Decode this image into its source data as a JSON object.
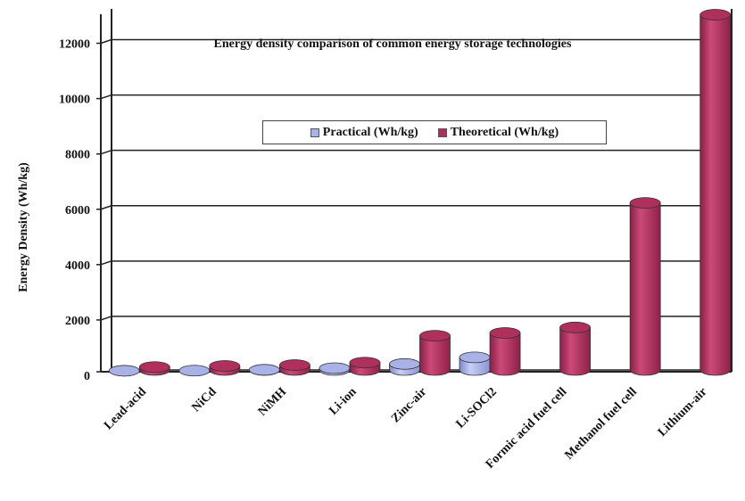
{
  "chart_data": {
    "type": "bar",
    "title": "Energy density comparison of common energy storage technologies",
    "xlabel": "",
    "ylabel": "Energy Density (Wh/kg)",
    "ylim": [
      0,
      13000
    ],
    "yticks": [
      "0",
      "2000",
      "4000",
      "6000",
      "8000",
      "10000",
      "12000"
    ],
    "ytick_values": [
      0,
      2000,
      4000,
      6000,
      8000,
      10000,
      12000
    ],
    "grid": true,
    "legend_position": "center",
    "categories": [
      "Lead-acid",
      "NiCd",
      "NiMH",
      "Li-ion",
      "Zinc-air",
      "Li-SOCl2",
      "Formic acid fuel cell",
      "Methanol fuel cell",
      "Lithium-air"
    ],
    "series": [
      {
        "name": "Practical (Wh/kg)",
        "color": "#a9b2e6",
        "values": [
          35,
          40,
          70,
          130,
          280,
          520,
          null,
          null,
          null
        ]
      },
      {
        "name": "Theoretical (Wh/kg)",
        "color": "#b0305d",
        "values": [
          170,
          210,
          240,
          330,
          1300,
          1400,
          1600,
          6100,
          12900
        ]
      }
    ]
  }
}
